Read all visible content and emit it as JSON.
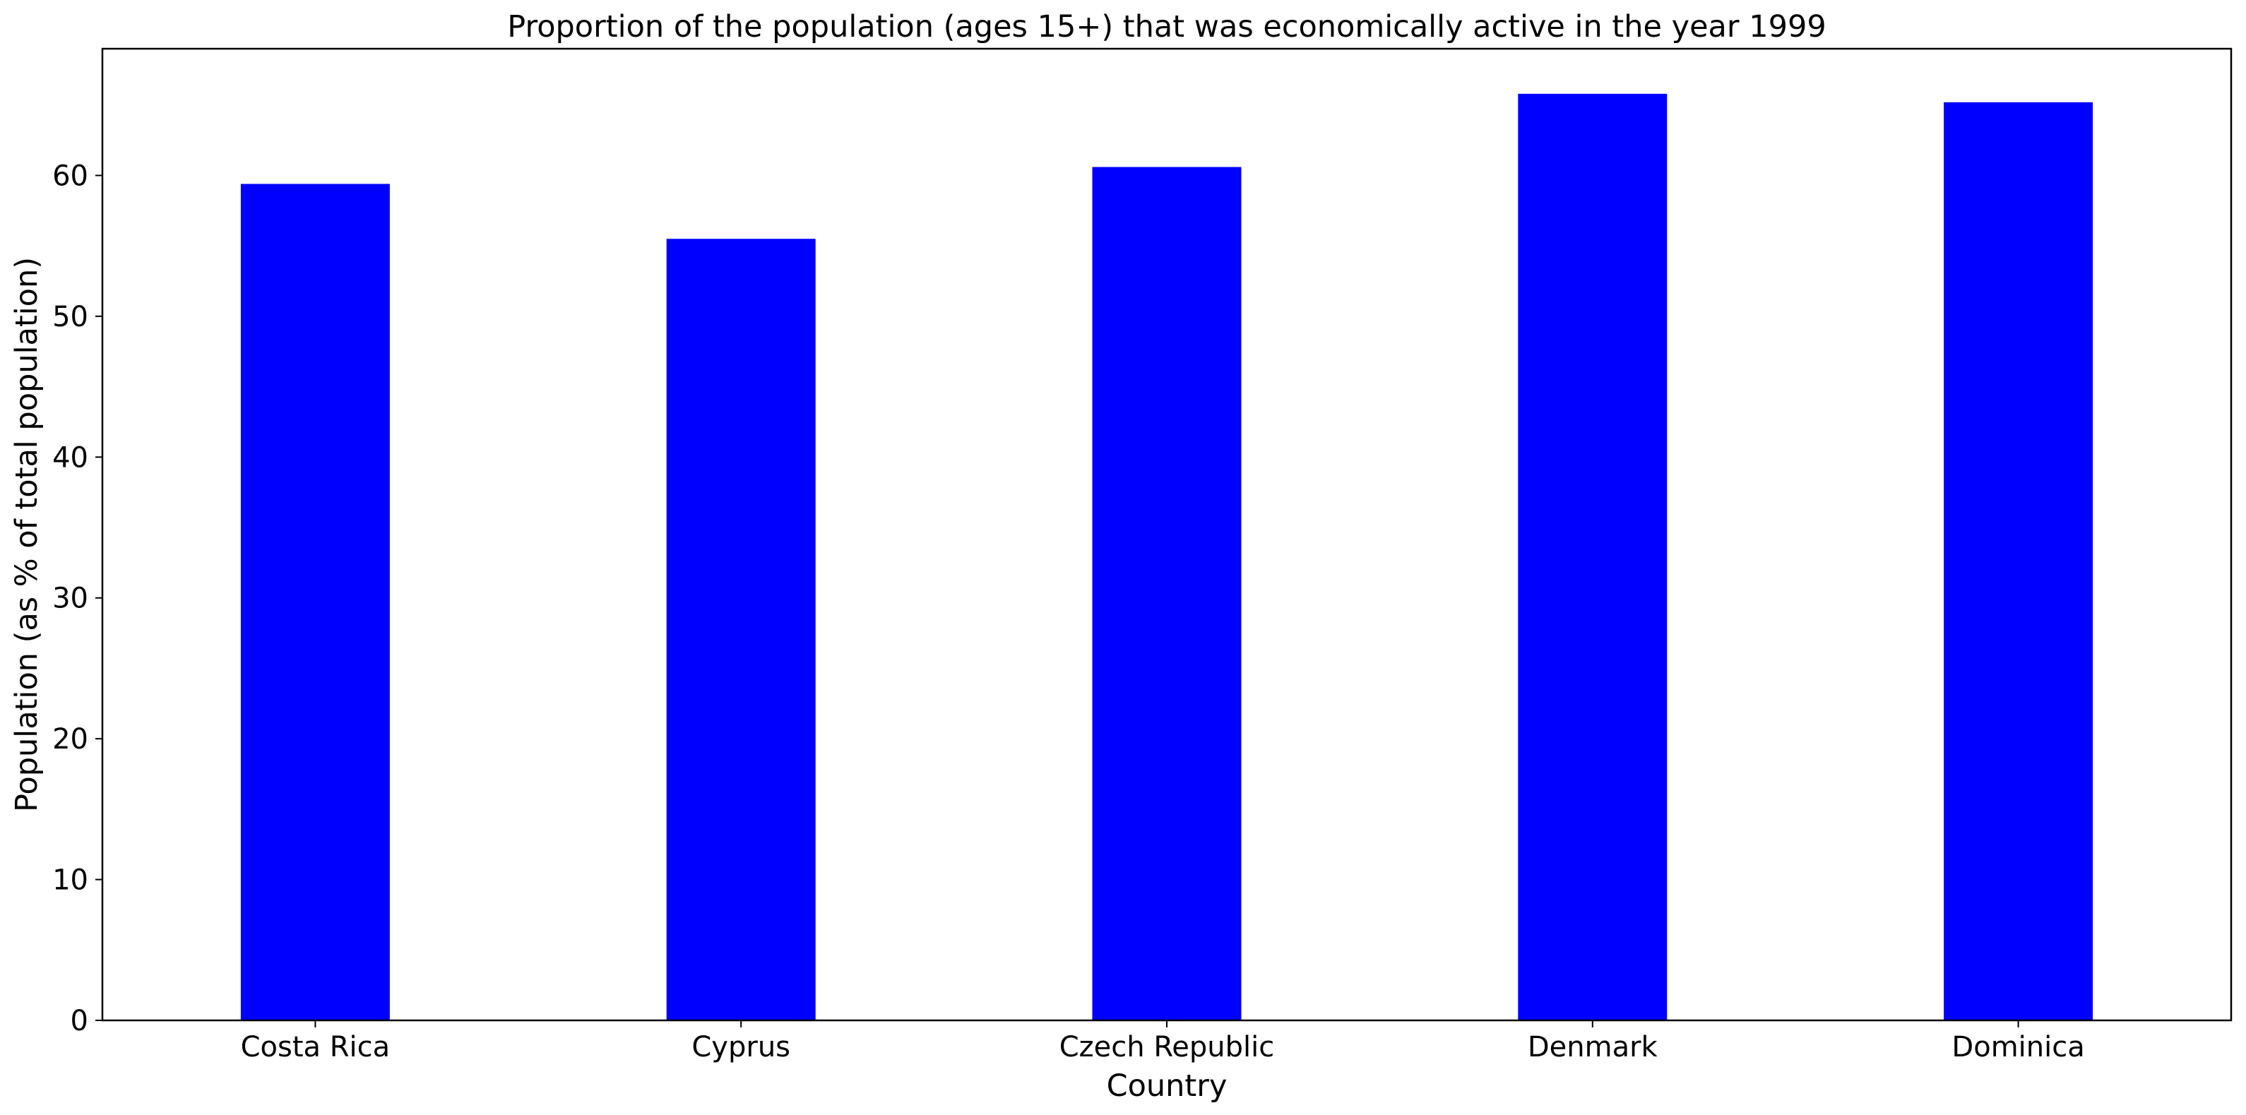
{
  "chart_data": {
    "type": "bar",
    "title": "Proportion of the population (ages 15+) that was economically active in the year 1999",
    "xlabel": "Country",
    "ylabel": "Population (as % of total population)",
    "categories": [
      "Costa Rica",
      "Cyprus",
      "Czech Republic",
      "Denmark",
      "Dominica"
    ],
    "values": [
      59.4,
      55.5,
      60.6,
      65.8,
      65.2
    ],
    "ylim": [
      0,
      69
    ],
    "yticks": [
      0,
      10,
      20,
      30,
      40,
      50,
      60
    ],
    "grid": false,
    "legend": "none",
    "bar_color": "#0000ff"
  }
}
